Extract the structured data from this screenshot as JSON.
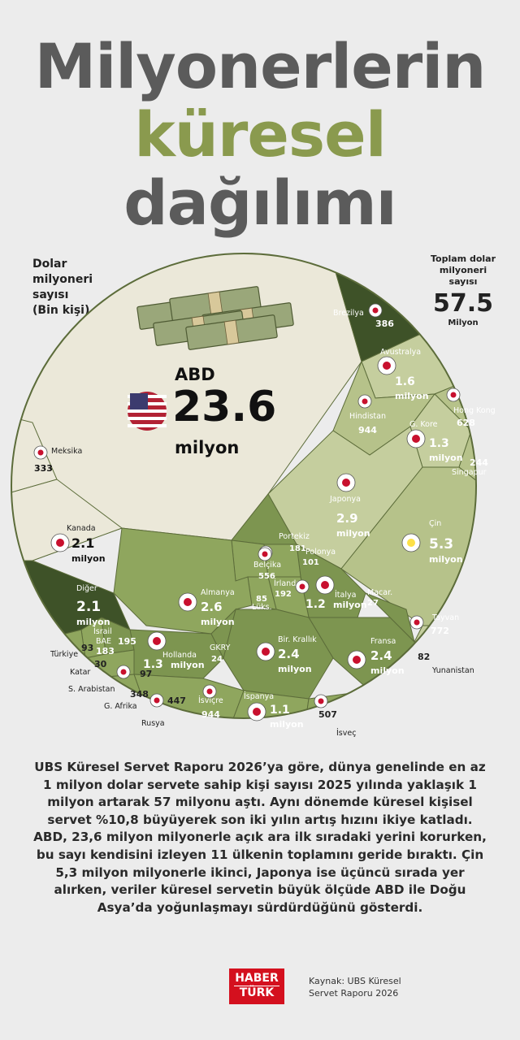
{
  "title": {
    "line1": "Milyonerlerin",
    "line2": "küresel",
    "line3": "dağılımı"
  },
  "left_note": [
    "Dolar",
    "milyoneri",
    "sayısı",
    "(Bin kişi)"
  ],
  "total": {
    "label": [
      "Toplam dolar",
      "milyoneri",
      "sayısı"
    ],
    "value": "57.5",
    "unit": "Milyon"
  },
  "chart_data": {
    "type": "voronoi-treemap",
    "title": "Milyonerlerin küresel dağılımı",
    "units": "Bin kişi",
    "total_millions": 57.5,
    "cells": [
      {
        "country": "ABD",
        "display": "23.6",
        "unit": "milyon",
        "value_thousands": 23600
      },
      {
        "country": "Çin",
        "display": "5.3",
        "unit": "milyon",
        "value_thousands": 5300
      },
      {
        "country": "Japonya",
        "display": "2.9",
        "unit": "milyon",
        "value_thousands": 2900
      },
      {
        "country": "Almanya",
        "display": "2.6",
        "unit": "milyon",
        "value_thousands": 2600
      },
      {
        "country": "Bir. Krallık",
        "display": "2.4",
        "unit": "milyon",
        "value_thousands": 2400
      },
      {
        "country": "Fransa",
        "display": "2.4",
        "unit": "milyon",
        "value_thousands": 2400
      },
      {
        "country": "Kanada",
        "display": "2.1",
        "unit": "milyon",
        "value_thousands": 2100
      },
      {
        "country": "Diğer",
        "display": "2.1",
        "unit": "milyon",
        "value_thousands": 2100
      },
      {
        "country": "Avustralya",
        "display": "1.6",
        "unit": "milyon",
        "value_thousands": 1600
      },
      {
        "country": "G. Kore",
        "display": "1.3",
        "unit": "milyon",
        "value_thousands": 1300
      },
      {
        "country": "Hollanda",
        "display": "1.3",
        "unit": "milyon",
        "value_thousands": 1300
      },
      {
        "country": "İtalya",
        "display": "1.2",
        "unit": "milyon",
        "value_thousands": 1200
      },
      {
        "country": "İspanya",
        "display": "1.1",
        "unit": "milyon",
        "value_thousands": 1100
      },
      {
        "country": "Hindistan",
        "display": "944",
        "value_thousands": 944
      },
      {
        "country": "İsviçre",
        "display": "944",
        "value_thousands": 944
      },
      {
        "country": "Tayvan",
        "display": "772",
        "value_thousands": 772
      },
      {
        "country": "Hong Kong",
        "display": "628",
        "value_thousands": 628
      },
      {
        "country": "Belçika",
        "display": "556",
        "value_thousands": 556
      },
      {
        "country": "İsveç",
        "display": "507",
        "value_thousands": 507
      },
      {
        "country": "Rusya",
        "display": "447",
        "value_thousands": 447
      },
      {
        "country": "Brezilya",
        "display": "386",
        "value_thousands": 386
      },
      {
        "country": "G. Afrika",
        "display": "348",
        "value_thousands": 348
      },
      {
        "country": "Meksika",
        "display": "333",
        "value_thousands": 333
      },
      {
        "country": "Singapur",
        "display": "244",
        "value_thousands": 244
      },
      {
        "country": "İsrail",
        "display": "195",
        "value_thousands": 195
      },
      {
        "country": "İrlanda",
        "display": "192",
        "value_thousands": 192
      },
      {
        "country": "BAE",
        "display": "183",
        "value_thousands": 183
      },
      {
        "country": "Portekiz",
        "display": "181",
        "value_thousands": 181
      },
      {
        "country": "Polonya",
        "display": "101",
        "value_thousands": 101
      },
      {
        "country": "S. Arabistan",
        "display": "97",
        "value_thousands": 97
      },
      {
        "country": "Türkiye",
        "display": "93",
        "value_thousands": 93
      },
      {
        "country": "Lüks.",
        "display": "85",
        "value_thousands": 85
      },
      {
        "country": "Yunanistan",
        "display": "82",
        "value_thousands": 82
      },
      {
        "country": "Katar",
        "display": "30",
        "value_thousands": 30
      },
      {
        "country": "Macar.",
        "display": "27",
        "value_thousands": 27
      },
      {
        "country": "GKRY",
        "display": "24",
        "value_thousands": 24
      }
    ]
  },
  "description": "UBS Küresel Servet Raporu 2026’ya göre, dünya genelinde en az 1 milyon dolar servete sahip kişi sayısı 2025 yılında yaklaşık 1 milyon artarak 57 milyonu aştı. Aynı dönemde küresel kişisel servet %10,8 büyüyerek son iki yılın artış hızını ikiye katladı. ABD, 23,6 milyon milyonerle açık ara ilk sıradaki yerini korurken, bu sayı kendisini izleyen 11 ülkenin toplamını geride bıraktı. Çin 5,3 milyon milyonerle ikinci, Japonya ise üçüncü sırada yer alırken, veriler küresel servetin büyük ölçüde ABD ile Doğu Asya’da yoğunlaşmayı sürdürdüğünü gösterdi.",
  "logo": {
    "line1": "HABER",
    "line2": "TÜRK"
  },
  "source": [
    "Kaynak: UBS Küresel",
    "Servet Raporu 2026"
  ],
  "colors": {
    "usa": "#ebe8d9",
    "asia": "#c5ce9e",
    "asia_alt": "#b6c28a",
    "europe": "#8fa65e",
    "europe_alt": "#7d9550",
    "other": "#3e5228",
    "border": "#5c6c3a",
    "accent_green": "#8a9a4e"
  }
}
